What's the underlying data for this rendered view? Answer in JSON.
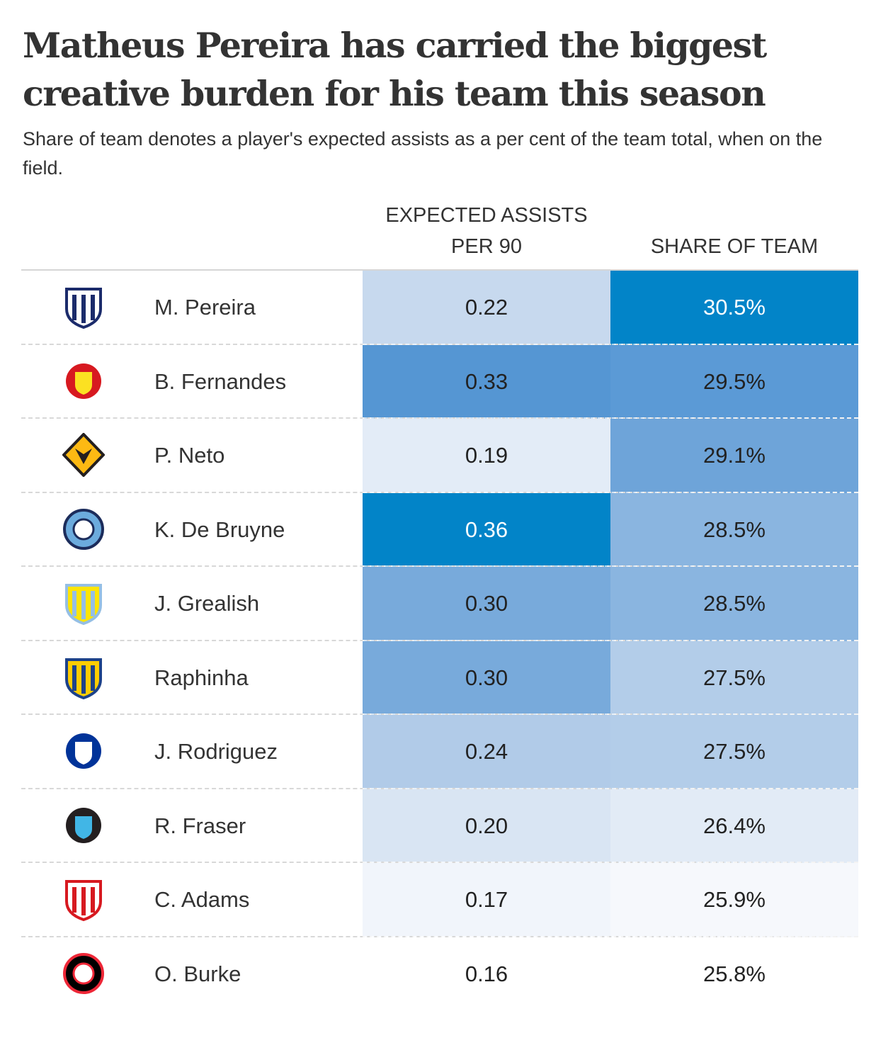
{
  "title": "Matheus Pereira has carried the biggest creative burden for his team this season",
  "subtitle": "Share of team denotes a player's expected assists as a per cent of the team total, when on the field.",
  "chart_data": {
    "type": "table",
    "columns": [
      "",
      "",
      "EXPECTED ASSISTS PER 90",
      "SHARE OF TEAM"
    ],
    "header_xa": "EXPECTED ASSISTS PER 90",
    "header_share": "SHARE OF TEAM",
    "color_scale": {
      "low": "#ffffff",
      "high": "#0284c8"
    },
    "rows": [
      {
        "player": "M. Pereira",
        "team_icon": "west-brom-crest-icon",
        "xa": "0.22",
        "share": "30.5%",
        "xa_color": "#c7d9ee",
        "share_color": "#0284c8",
        "crest": [
          "#1b2b6b",
          "#ffffff",
          "shield"
        ]
      },
      {
        "player": "B. Fernandes",
        "team_icon": "man-united-crest-icon",
        "xa": "0.33",
        "share": "29.5%",
        "xa_color": "#5596d3",
        "share_color": "#5b9ad6",
        "crest": [
          "#d71920",
          "#fbe122",
          "round"
        ]
      },
      {
        "player": "P. Neto",
        "team_icon": "wolves-crest-icon",
        "xa": "0.19",
        "share": "29.1%",
        "xa_color": "#e3ecf7",
        "share_color": "#6ea4d9",
        "crest": [
          "#231f20",
          "#fdb913",
          "octagon"
        ]
      },
      {
        "player": "K. De Bruyne",
        "team_icon": "man-city-crest-icon",
        "xa": "0.36",
        "share": "28.5%",
        "xa_color": "#0284c8",
        "share_color": "#8ab5e0",
        "crest": [
          "#1c2c5b",
          "#6cabdd",
          "circle"
        ]
      },
      {
        "player": "J. Grealish",
        "team_icon": "aston-villa-crest-icon",
        "xa": "0.30",
        "share": "28.5%",
        "xa_color": "#78aadb",
        "share_color": "#8ab5e0",
        "crest": [
          "#95bfe5",
          "#fee505",
          "shield"
        ]
      },
      {
        "player": "Raphinha",
        "team_icon": "leeds-crest-icon",
        "xa": "0.30",
        "share": "27.5%",
        "xa_color": "#78aadb",
        "share_color": "#b3cde9",
        "crest": [
          "#1d428a",
          "#ffcd00",
          "shield"
        ]
      },
      {
        "player": "J. Rodriguez",
        "team_icon": "everton-crest-icon",
        "xa": "0.24",
        "share": "27.5%",
        "xa_color": "#b1cbe8",
        "share_color": "#b3cde9",
        "crest": [
          "#003399",
          "#ffffff",
          "round"
        ]
      },
      {
        "player": "R. Fraser",
        "team_icon": "newcastle-crest-icon",
        "xa": "0.20",
        "share": "26.4%",
        "xa_color": "#d9e5f3",
        "share_color": "#e2ebf6",
        "crest": [
          "#241f20",
          "#41b6e6",
          "round"
        ]
      },
      {
        "player": "C. Adams",
        "team_icon": "southampton-crest-icon",
        "xa": "0.17",
        "share": "25.9%",
        "xa_color": "#f1f5fb",
        "share_color": "#f6f8fc",
        "crest": [
          "#d71920",
          "#ffffff",
          "shield"
        ]
      },
      {
        "player": "O. Burke",
        "team_icon": "sheffield-united-crest-icon",
        "xa": "0.16",
        "share": "25.8%",
        "xa_color": "#ffffff",
        "share_color": "#ffffff",
        "crest": [
          "#ee2737",
          "#000000",
          "circle"
        ]
      }
    ]
  }
}
